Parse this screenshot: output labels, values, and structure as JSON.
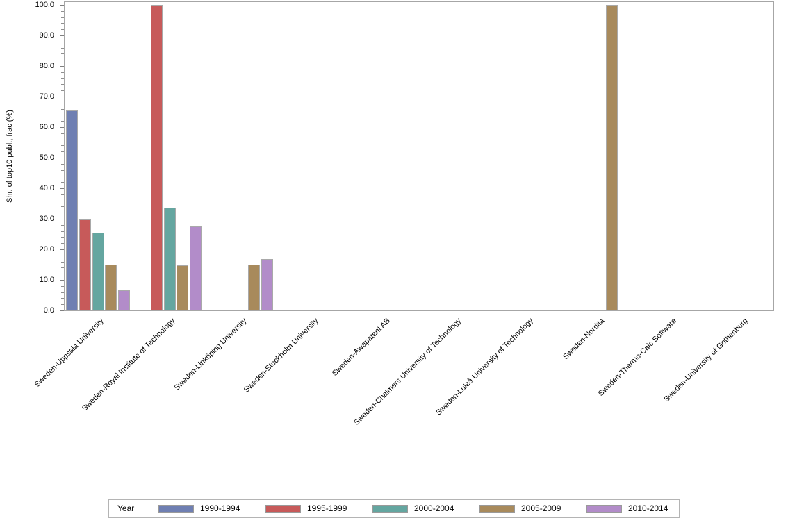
{
  "figure": {
    "background": "#ffffff",
    "frame_color": "#a6a6a6",
    "bar_border_color": "#a9a9a9",
    "text_color": "#000000"
  },
  "chart_data": {
    "type": "bar",
    "title": "",
    "xlabel": "",
    "ylabel": "Shr. of top10 publ., frac (%)",
    "ylim": [
      0,
      100
    ],
    "ytick_interval": 10,
    "minor_tick_interval": 2,
    "ytick_labels": [
      "0.0",
      "10.0",
      "20.0",
      "30.0",
      "40.0",
      "50.0",
      "60.0",
      "70.0",
      "80.0",
      "90.0",
      "100.0"
    ],
    "grid": false,
    "legend": {
      "title": "Year",
      "position": "bottom"
    },
    "categories": [
      "Sweden-Uppsala University",
      "Sweden-Royal Institute of Technology",
      "Sweden-Linköping University",
      "Sweden-Stockholm University",
      "Sweden-Awapatent AB",
      "Sweden-Chalmers University of Technology",
      "Sweden-Luleå University of Technology",
      "Sweden-Nordita",
      "Sweden-Thermo-Calc Software",
      "Sweden-University of Gothenburg"
    ],
    "series": [
      {
        "name": "1990-1994",
        "color": "#6F7FB2",
        "values": [
          65.4,
          null,
          null,
          null,
          null,
          null,
          null,
          null,
          null,
          null
        ]
      },
      {
        "name": "1995-1999",
        "color": "#C75A5A",
        "values": [
          29.8,
          100.0,
          null,
          null,
          null,
          null,
          null,
          null,
          null,
          null
        ]
      },
      {
        "name": "2000-2004",
        "color": "#64A6A0",
        "values": [
          25.5,
          33.6,
          null,
          null,
          null,
          null,
          null,
          null,
          null,
          null
        ]
      },
      {
        "name": "2005-2009",
        "color": "#A88A5C",
        "values": [
          15.0,
          14.8,
          15.0,
          null,
          null,
          null,
          null,
          100.0,
          null,
          null
        ]
      },
      {
        "name": "2010-2014",
        "color": "#B28CC9",
        "values": [
          6.6,
          27.5,
          16.8,
          null,
          null,
          null,
          null,
          null,
          null,
          null
        ]
      }
    ]
  }
}
